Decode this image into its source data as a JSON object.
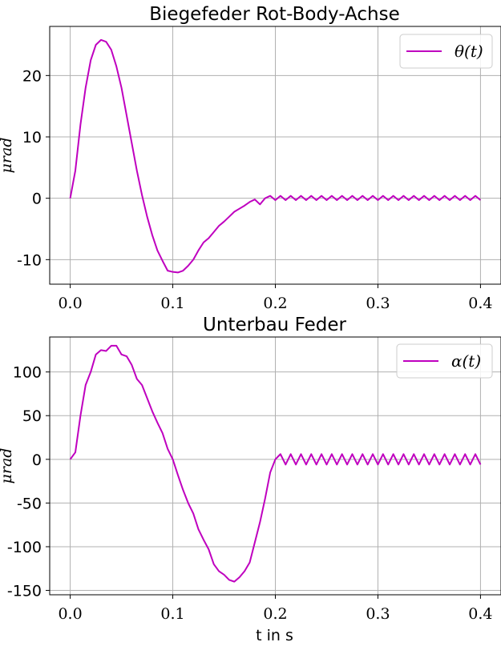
{
  "colors": {
    "series": "#bf00bf",
    "grid": "#b0b0b0"
  },
  "chart_data": [
    {
      "type": "line",
      "title": "Biegefeder Rot-Body-Achse",
      "xlabel": "",
      "ylabel": "μrad",
      "xlim": [
        -0.02,
        0.42
      ],
      "ylim": [
        -14,
        28
      ],
      "xticks": [
        0.0,
        0.1,
        0.2,
        0.3,
        0.4
      ],
      "xtick_labels": [
        "0.0",
        "0.1",
        "0.2",
        "0.3",
        "0.4"
      ],
      "yticks": [
        20,
        10,
        0,
        -10
      ],
      "ytick_labels": [
        "20",
        "10",
        "0",
        "-10"
      ],
      "grid": true,
      "legend": "top-right",
      "series": [
        {
          "name": "θ(t)",
          "x": [
            0.0,
            0.005,
            0.01,
            0.015,
            0.02,
            0.025,
            0.03,
            0.035,
            0.04,
            0.045,
            0.05,
            0.055,
            0.06,
            0.065,
            0.07,
            0.075,
            0.08,
            0.085,
            0.09,
            0.095,
            0.1,
            0.105,
            0.11,
            0.115,
            0.12,
            0.125,
            0.13,
            0.135,
            0.14,
            0.145,
            0.15,
            0.155,
            0.16,
            0.165,
            0.17,
            0.175,
            0.18,
            0.185,
            0.19,
            0.195,
            0.2,
            0.205,
            0.21,
            0.215,
            0.22,
            0.225,
            0.23,
            0.235,
            0.24,
            0.245,
            0.25,
            0.255,
            0.26,
            0.265,
            0.27,
            0.275,
            0.28,
            0.285,
            0.29,
            0.295,
            0.3,
            0.305,
            0.31,
            0.315,
            0.32,
            0.325,
            0.33,
            0.335,
            0.34,
            0.345,
            0.35,
            0.355,
            0.36,
            0.365,
            0.37,
            0.375,
            0.38,
            0.385,
            0.39,
            0.395,
            0.4
          ],
          "values": [
            0,
            4.5,
            12,
            18,
            22.5,
            25,
            25.8,
            25.5,
            24.2,
            21.5,
            18,
            13.5,
            9,
            4.5,
            0.5,
            -3,
            -6,
            -8.5,
            -10.2,
            -11.8,
            -12,
            -12.1,
            -11.8,
            -11,
            -10,
            -8.5,
            -7.2,
            -6.5,
            -5.5,
            -4.5,
            -3.8,
            -3,
            -2.2,
            -1.7,
            -1.2,
            -0.6,
            -0.2,
            -1,
            0,
            0.4,
            -0.3,
            0.4,
            -0.3,
            0.4,
            -0.3,
            0.4,
            -0.3,
            0.4,
            -0.3,
            0.4,
            -0.3,
            0.4,
            -0.3,
            0.4,
            -0.3,
            0.4,
            -0.3,
            0.4,
            -0.3,
            0.4,
            -0.3,
            0.4,
            -0.3,
            0.4,
            -0.3,
            0.4,
            -0.3,
            0.4,
            -0.3,
            0.4,
            -0.3,
            0.4,
            -0.3,
            0.4,
            -0.3,
            0.4,
            -0.3,
            0.4,
            -0.3,
            0.4,
            -0.3
          ]
        }
      ]
    },
    {
      "type": "line",
      "title": "Unterbau Feder",
      "xlabel": "t in s",
      "ylabel": "μrad",
      "xlim": [
        -0.02,
        0.42
      ],
      "ylim": [
        -155,
        140
      ],
      "xticks": [
        0.0,
        0.1,
        0.2,
        0.3,
        0.4
      ],
      "xtick_labels": [
        "0.0",
        "0.1",
        "0.2",
        "0.3",
        "0.4"
      ],
      "yticks": [
        100,
        50,
        0,
        -50,
        -100,
        -150
      ],
      "ytick_labels": [
        "100",
        "50",
        "0",
        "-50",
        "-100",
        "-150"
      ],
      "grid": true,
      "legend": "top-right",
      "series": [
        {
          "name": "α(t)",
          "x": [
            0.0,
            0.005,
            0.01,
            0.015,
            0.02,
            0.025,
            0.03,
            0.035,
            0.04,
            0.045,
            0.05,
            0.055,
            0.06,
            0.065,
            0.07,
            0.075,
            0.08,
            0.085,
            0.09,
            0.095,
            0.1,
            0.105,
            0.11,
            0.115,
            0.12,
            0.125,
            0.13,
            0.135,
            0.14,
            0.145,
            0.15,
            0.155,
            0.16,
            0.165,
            0.17,
            0.175,
            0.18,
            0.185,
            0.19,
            0.195,
            0.2,
            0.205,
            0.21,
            0.215,
            0.22,
            0.225,
            0.23,
            0.235,
            0.24,
            0.245,
            0.25,
            0.255,
            0.26,
            0.265,
            0.27,
            0.275,
            0.28,
            0.285,
            0.29,
            0.295,
            0.3,
            0.305,
            0.31,
            0.315,
            0.32,
            0.325,
            0.33,
            0.335,
            0.34,
            0.345,
            0.35,
            0.355,
            0.36,
            0.365,
            0.37,
            0.375,
            0.38,
            0.385,
            0.39,
            0.395,
            0.4
          ],
          "values": [
            0,
            8,
            50,
            85,
            100,
            120,
            125,
            124,
            130,
            130,
            120,
            118,
            108,
            92,
            85,
            70,
            55,
            42,
            30,
            12,
            0,
            -18,
            -35,
            -50,
            -62,
            -80,
            -92,
            -103,
            -120,
            -128,
            -132,
            -138,
            -140,
            -135,
            -128,
            -118,
            -95,
            -72,
            -45,
            -15,
            0,
            6,
            -6,
            6,
            -6,
            6,
            -6,
            6,
            -6,
            6,
            -6,
            6,
            -6,
            6,
            -6,
            6,
            -6,
            6,
            -6,
            6,
            -6,
            6,
            -6,
            6,
            -6,
            6,
            -6,
            6,
            -6,
            6,
            -6,
            6,
            -6,
            6,
            -6,
            6,
            -6,
            6,
            -6,
            6,
            -6
          ]
        }
      ]
    }
  ]
}
